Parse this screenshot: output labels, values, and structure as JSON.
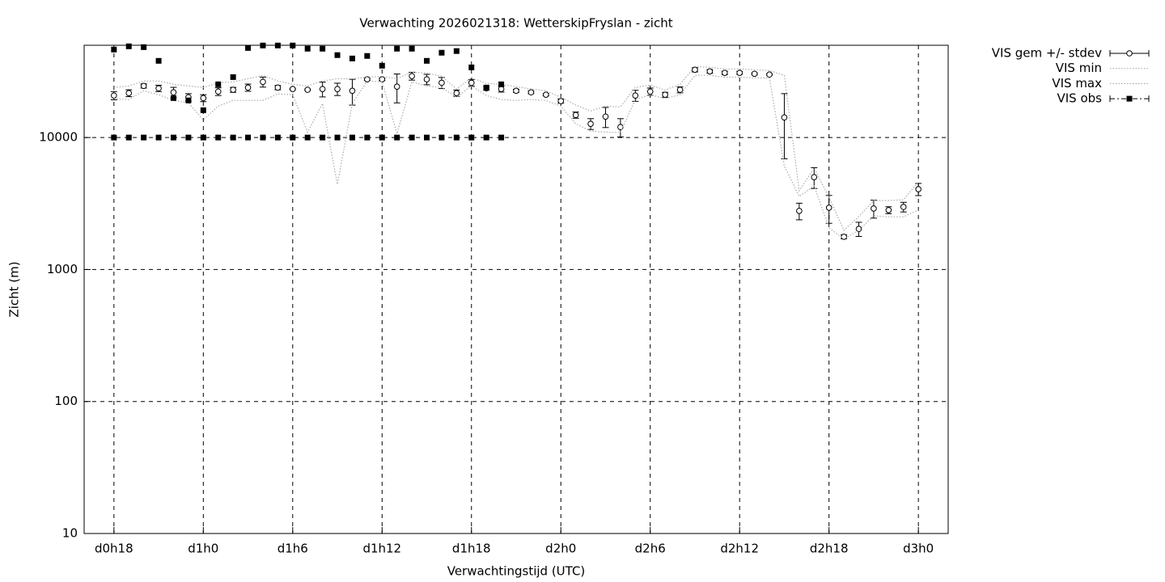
{
  "chart_data": {
    "type": "line",
    "title": "Verwachting 2026021318: WetterskipFryslan - zicht",
    "xlabel": "Verwachtingstijd (UTC)",
    "ylabel": "Zicht (m)",
    "log_y": true,
    "grid": true,
    "legend": "outside-top-right",
    "xlim": [
      16,
      74
    ],
    "ylim": [
      10,
      50000
    ],
    "yticks": [
      10,
      100,
      1000,
      10000
    ],
    "xticks": [
      {
        "value": 18,
        "label": "d0h18"
      },
      {
        "value": 24,
        "label": "d1h0"
      },
      {
        "value": 30,
        "label": "d1h6"
      },
      {
        "value": 36,
        "label": "d1h12"
      },
      {
        "value": 42,
        "label": "d1h18"
      },
      {
        "value": 48,
        "label": "d2h0"
      },
      {
        "value": 54,
        "label": "d2h6"
      },
      {
        "value": 60,
        "label": "d2h12"
      },
      {
        "value": 66,
        "label": "d2h18"
      },
      {
        "value": 72,
        "label": "d3h0"
      }
    ],
    "x": [
      18,
      19,
      20,
      21,
      22,
      23,
      24,
      25,
      26,
      27,
      28,
      29,
      30,
      31,
      32,
      33,
      34,
      35,
      36,
      37,
      38,
      39,
      40,
      41,
      42,
      43,
      44,
      45,
      46,
      47,
      48,
      49,
      50,
      51,
      52,
      53,
      54,
      55,
      56,
      57,
      58,
      59,
      60,
      61,
      62,
      63,
      64,
      65,
      66,
      67,
      68,
      69,
      70,
      71,
      72
    ],
    "series": [
      {
        "name": "VIS gem +/- stdev",
        "color": "#000000",
        "style": "errorbars",
        "values": [
          20800,
          21700,
          24600,
          23600,
          22000,
          20200,
          19900,
          22300,
          23000,
          23900,
          26400,
          23900,
          23300,
          23000,
          23300,
          23300,
          22600,
          27600,
          27600,
          24300,
          29200,
          27600,
          26000,
          21700,
          26000,
          23600,
          23300,
          22600,
          22000,
          21100,
          18900,
          14800,
          12700,
          14400,
          12000,
          20800,
          22300,
          21100,
          23000,
          32600,
          31700,
          30900,
          30900,
          30400,
          30000,
          14200,
          2780,
          5010,
          2940,
          1770,
          2030,
          2900,
          2820,
          2980,
          4060
        ],
        "errors": [
          1500,
          1300,
          900,
          1300,
          2000,
          1300,
          1200,
          1500,
          1000,
          1500,
          2300,
          900,
          300,
          300,
          3000,
          2500,
          5000,
          500,
          600,
          6000,
          2000,
          2500,
          2500,
          1200,
          1500,
          800,
          1200,
          600,
          500,
          400,
          700,
          800,
          1200,
          2500,
          1900,
          2000,
          1400,
          900,
          1200,
          1200,
          1000,
          900,
          800,
          500,
          400,
          7300,
          400,
          900,
          700,
          60,
          250,
          450,
          170,
          250,
          430
        ]
      },
      {
        "name": "VIS min",
        "color": "#aaaaaa",
        "style": "dotted",
        "values": [
          19700,
          19400,
          22600,
          21100,
          19100,
          18300,
          13600,
          17300,
          19100,
          19100,
          19100,
          21400,
          21100,
          11000,
          18100,
          4420,
          18100,
          26800,
          26400,
          10700,
          26400,
          24600,
          23900,
          20200,
          24600,
          20800,
          19400,
          19100,
          19400,
          19100,
          17300,
          12700,
          11200,
          11000,
          10900,
          19400,
          21100,
          19700,
          21100,
          29600,
          29600,
          28700,
          28700,
          28300,
          28300,
          6110,
          3580,
          4300,
          2070,
          1700,
          1980,
          2550,
          2510,
          2510,
          2820
        ]
      },
      {
        "name": "VIS max",
        "color": "#aaaaaa",
        "style": "dotted",
        "values": [
          23900,
          24600,
          26800,
          26800,
          25300,
          24600,
          23900,
          26000,
          26400,
          27900,
          29600,
          26800,
          25300,
          24600,
          26800,
          27900,
          27900,
          28700,
          29100,
          27900,
          31300,
          30800,
          29100,
          23300,
          28300,
          25700,
          25300,
          24300,
          23300,
          22600,
          20200,
          17600,
          15900,
          17300,
          17100,
          23900,
          25000,
          22900,
          25300,
          34500,
          34000,
          33100,
          33100,
          32600,
          32200,
          29600,
          3950,
          5860,
          3530,
          1980,
          2520,
          3330,
          3330,
          3380,
          4610
        ]
      },
      {
        "name": "VIS obs",
        "color": "#000000",
        "style": "squares",
        "x": [
          18,
          19,
          20,
          21,
          22,
          23,
          24,
          25,
          26,
          27,
          28,
          29,
          30,
          31,
          32,
          33,
          34,
          35,
          36,
          37,
          38,
          39,
          40,
          41,
          42,
          43,
          44,
          18,
          19,
          20,
          21,
          22,
          23,
          24,
          25,
          26,
          27,
          28,
          29,
          30,
          31,
          32,
          33,
          34,
          35,
          36,
          37,
          38,
          39,
          40,
          41,
          42,
          43,
          44
        ],
        "values": [
          46400,
          49100,
          48400,
          38100,
          19900,
          19100,
          16100,
          25300,
          28700,
          47700,
          49800,
          49800,
          49800,
          47100,
          47100,
          42100,
          39700,
          41500,
          35000,
          47100,
          47100,
          38100,
          43900,
          45200,
          34000,
          23900,
          25300,
          10000,
          10000,
          10000,
          10000,
          10000,
          10000,
          10000,
          10000,
          10000,
          10000,
          10000,
          10000,
          10000,
          10000,
          10000,
          10000,
          10000,
          10000,
          10000,
          10000,
          10000,
          10000,
          10000,
          10000,
          10000,
          10000,
          10000
        ]
      }
    ]
  }
}
